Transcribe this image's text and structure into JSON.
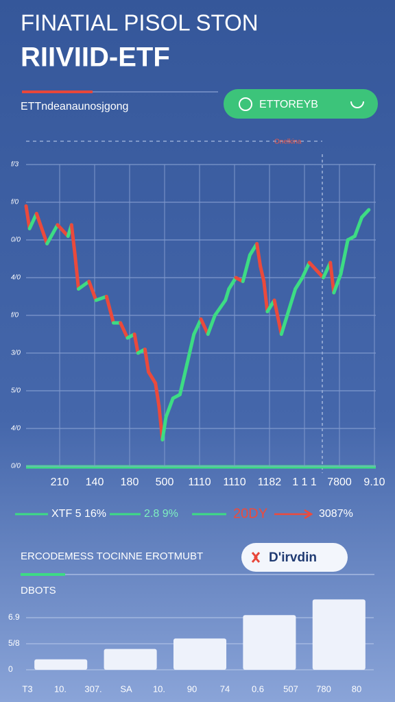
{
  "header": {
    "title": "FINATIAL PISOL STON",
    "subtitle": "RIIVIID-ETF",
    "tagline": "ETTndeanaunosjgong",
    "button": "ETTOREYB",
    "marker": "Onelkina"
  },
  "legend_row": [
    "XTF 5 16%",
    "2.8 9%",
    "20DY",
    "3087%"
  ],
  "section": {
    "title": "ERCODEMESS TOCINNE EROTMUBT",
    "button": "D'irvdin",
    "label": "DBOTS"
  },
  "footer_labels": [
    "T3",
    "10.",
    "307.",
    "SA",
    "10.",
    "90",
    "74",
    "0.6",
    "507",
    "780",
    "80"
  ],
  "chart_data": [
    {
      "type": "line",
      "x": [
        0,
        0.1,
        0.3,
        0.6,
        0.9,
        1.2,
        1.3,
        1.4,
        1.5,
        1.8,
        2.0,
        2.3,
        2.5,
        2.7,
        2.9,
        3.1,
        3.2,
        3.4,
        3.5,
        3.7,
        3.8,
        3.9,
        4.0,
        4.2,
        4.4,
        4.6,
        4.8,
        5.0,
        5.2,
        5.4,
        5.7,
        5.8,
        6.0,
        6.2,
        6.4,
        6.6,
        6.7,
        6.8,
        6.9,
        7.1,
        7.3,
        7.5,
        7.7,
        7.9,
        8.1,
        8.3,
        8.5,
        8.7,
        8.8,
        9.0,
        9.2,
        9.4,
        9.6,
        9.8
      ],
      "values": [
        6.9,
        6.3,
        6.7,
        5.9,
        6.4,
        6.1,
        6.4,
        5.6,
        4.7,
        4.9,
        4.4,
        4.5,
        3.8,
        3.8,
        3.4,
        3.5,
        3.0,
        3.1,
        2.5,
        2.2,
        1.6,
        0.7,
        1.3,
        1.8,
        1.9,
        2.7,
        3.5,
        3.9,
        3.5,
        4.0,
        4.4,
        4.7,
        5.0,
        4.9,
        5.6,
        5.9,
        5.3,
        4.9,
        4.1,
        4.4,
        3.5,
        4.1,
        4.7,
        5.0,
        5.4,
        5.2,
        5.0,
        5.4,
        4.6,
        5.1,
        6.0,
        6.1,
        6.6,
        6.8
      ],
      "up_color": "#3ddc84",
      "down_color": "#ea4a3c",
      "xlim": [
        0,
        10
      ],
      "xticks": [
        {
          "value": 1,
          "label": "210"
        },
        {
          "value": 2,
          "label": "140"
        },
        {
          "value": 3,
          "label": "180"
        },
        {
          "value": 4,
          "label": "500"
        },
        {
          "value": 5,
          "label": "1110"
        },
        {
          "value": 6,
          "label": "1110"
        },
        {
          "value": 7,
          "label": "1182"
        },
        {
          "value": 8,
          "label": "1 1 1"
        },
        {
          "value": 9,
          "label": "7800"
        },
        {
          "value": 10,
          "label": "9.10"
        }
      ],
      "ylim": [
        0,
        8
      ],
      "yticks": [
        {
          "value": 0,
          "label": "0/0"
        },
        {
          "value": 1,
          "label": "4/0"
        },
        {
          "value": 2,
          "label": "5/0"
        },
        {
          "value": 3,
          "label": "3/0"
        },
        {
          "value": 4,
          "label": "f/0"
        },
        {
          "value": 5,
          "label": "4/0"
        },
        {
          "value": 6,
          "label": "0/0"
        },
        {
          "value": 7,
          "label": "f/0"
        },
        {
          "value": 8,
          "label": "f/3"
        }
      ],
      "grid": true
    },
    {
      "type": "bar",
      "categories": [
        null,
        null,
        null,
        null,
        null
      ],
      "values": [
        0.4,
        0.8,
        1.2,
        2.1,
        2.7
      ],
      "color": "#eef2fb",
      "ylim": [
        0,
        3
      ],
      "yticks": [
        0,
        {
          "value": 1,
          "label": "5/8"
        },
        {
          "value": 2,
          "label": "6.9"
        }
      ],
      "grid": true
    }
  ]
}
